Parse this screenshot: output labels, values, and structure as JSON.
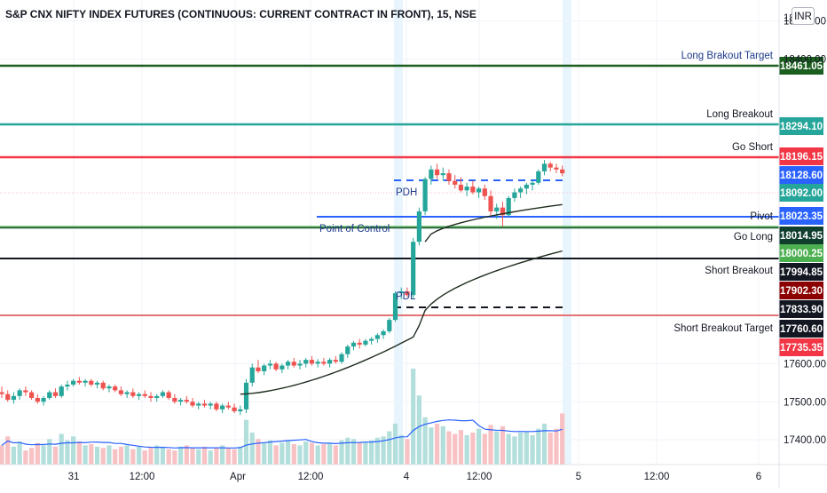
{
  "header": {
    "title": "S&P CNX NIFTY INDEX FUTURES (CONTINUOUS: CURRENT CONTRACT IN FRONT), 15, NSE",
    "currency": "INR"
  },
  "colors": {
    "candle_up": "#26a69a",
    "candle_down": "#ef5350",
    "vol_up": "#b2dfdb",
    "vol_down": "#f8c1c3",
    "vwap": "#1f2d1f",
    "volume_ma": "#2962ff",
    "session_band": "#e3f2fd"
  },
  "price_axis": {
    "ticks": [
      "18500.00",
      "18400.00",
      "17600.00",
      "17500.00",
      "17400.00"
    ],
    "top_label": "18"
  },
  "time_axis": {
    "ticks": [
      "31",
      "12:00",
      "Apr",
      "12:00",
      "4",
      "12:00",
      "5",
      "12:00",
      "6"
    ]
  },
  "levels": [
    {
      "label": "Long Brakout Target",
      "value": "18461.05",
      "style": "darkgreen"
    },
    {
      "label": "Long Breakout",
      "value": "18294.10",
      "style": "teal"
    },
    {
      "label": "Go Short",
      "value": "18196.15",
      "style": "red"
    },
    {
      "label": "PDH",
      "value": "18128.60",
      "style": "bluedash"
    },
    {
      "label": "",
      "value": "18092.00",
      "style": "current"
    },
    {
      "label": "Pivot",
      "value": "18023.35",
      "style": "blue"
    },
    {
      "label": "Go Long",
      "value": "18014.95",
      "style": "darkteal"
    },
    {
      "label": "",
      "value": "18000.25",
      "style": "green"
    },
    {
      "label": "Short Breakout",
      "value": "17994.85",
      "style": "black"
    },
    {
      "label": "",
      "value": "17902.30",
      "style": "maroon"
    },
    {
      "label": "PDL",
      "value": "17833.90",
      "style": "blackdash"
    },
    {
      "label": "Short Breakout Target",
      "value": "17760.60",
      "style": "darkred"
    },
    {
      "label": "",
      "value": "17735.35",
      "style": "redbadge"
    }
  ],
  "annotations": {
    "point_of_control": "Point of Control"
  },
  "chart_data": {
    "type": "candlestick",
    "title": "S&P CNX NIFTY INDEX FUTURES (CONTINUOUS: CURRENT CONTRACT IN FRONT), 15, NSE",
    "interval": "15",
    "exchange": "NSE",
    "candles": [
      [
        17525,
        17540,
        17510,
        17520
      ],
      [
        17520,
        17530,
        17500,
        17505
      ],
      [
        17505,
        17525,
        17495,
        17515
      ],
      [
        17515,
        17535,
        17505,
        17530
      ],
      [
        17530,
        17540,
        17515,
        17525
      ],
      [
        17525,
        17530,
        17505,
        17510
      ],
      [
        17510,
        17520,
        17495,
        17500
      ],
      [
        17500,
        17515,
        17490,
        17510
      ],
      [
        17510,
        17530,
        17505,
        17525
      ],
      [
        17525,
        17535,
        17510,
        17515
      ],
      [
        17515,
        17545,
        17510,
        17540
      ],
      [
        17540,
        17555,
        17530,
        17545
      ],
      [
        17545,
        17560,
        17540,
        17555
      ],
      [
        17555,
        17565,
        17545,
        17550
      ],
      [
        17550,
        17560,
        17540,
        17555
      ],
      [
        17555,
        17560,
        17540,
        17545
      ],
      [
        17545,
        17555,
        17535,
        17550
      ],
      [
        17550,
        17555,
        17530,
        17535
      ],
      [
        17535,
        17545,
        17525,
        17540
      ],
      [
        17540,
        17545,
        17525,
        17530
      ],
      [
        17530,
        17540,
        17515,
        17520
      ],
      [
        17520,
        17530,
        17510,
        17525
      ],
      [
        17525,
        17535,
        17510,
        17515
      ],
      [
        17515,
        17525,
        17505,
        17520
      ],
      [
        17520,
        17530,
        17510,
        17515
      ],
      [
        17515,
        17525,
        17500,
        17510
      ],
      [
        17510,
        17520,
        17500,
        17515
      ],
      [
        17515,
        17530,
        17510,
        17525
      ],
      [
        17525,
        17530,
        17505,
        17510
      ],
      [
        17510,
        17520,
        17495,
        17500
      ],
      [
        17500,
        17510,
        17490,
        17505
      ],
      [
        17505,
        17515,
        17495,
        17500
      ],
      [
        17500,
        17510,
        17485,
        17490
      ],
      [
        17490,
        17500,
        17480,
        17495
      ],
      [
        17495,
        17505,
        17485,
        17490
      ],
      [
        17490,
        17500,
        17480,
        17495
      ],
      [
        17495,
        17500,
        17475,
        17480
      ],
      [
        17480,
        17495,
        17470,
        17490
      ],
      [
        17490,
        17500,
        17480,
        17485
      ],
      [
        17485,
        17495,
        17470,
        17475
      ],
      [
        17475,
        17490,
        17465,
        17480
      ],
      [
        17480,
        17560,
        17470,
        17550
      ],
      [
        17550,
        17600,
        17540,
        17590
      ],
      [
        17590,
        17610,
        17575,
        17580
      ],
      [
        17580,
        17600,
        17570,
        17595
      ],
      [
        17595,
        17610,
        17585,
        17600
      ],
      [
        17600,
        17605,
        17580,
        17585
      ],
      [
        17585,
        17600,
        17575,
        17595
      ],
      [
        17595,
        17610,
        17585,
        17605
      ],
      [
        17605,
        17615,
        17590,
        17595
      ],
      [
        17595,
        17610,
        17585,
        17600
      ],
      [
        17600,
        17615,
        17590,
        17610
      ],
      [
        17610,
        17620,
        17595,
        17600
      ],
      [
        17600,
        17612,
        17590,
        17605
      ],
      [
        17605,
        17615,
        17595,
        17600
      ],
      [
        17600,
        17615,
        17590,
        17610
      ],
      [
        17610,
        17620,
        17600,
        17605
      ],
      [
        17605,
        17630,
        17600,
        17625
      ],
      [
        17625,
        17650,
        17615,
        17645
      ],
      [
        17645,
        17660,
        17635,
        17655
      ],
      [
        17655,
        17665,
        17640,
        17650
      ],
      [
        17650,
        17665,
        17645,
        17660
      ],
      [
        17660,
        17670,
        17650,
        17665
      ],
      [
        17665,
        17680,
        17655,
        17675
      ],
      [
        17675,
        17690,
        17665,
        17685
      ],
      [
        17685,
        17720,
        17680,
        17715
      ],
      [
        17715,
        17790,
        17710,
        17785
      ],
      [
        17785,
        17800,
        17770,
        17790
      ],
      [
        17790,
        17800,
        17775,
        17780
      ],
      [
        17780,
        17930,
        17770,
        17920
      ],
      [
        17920,
        18010,
        17910,
        18000
      ],
      [
        18000,
        18090,
        17990,
        18085
      ],
      [
        18085,
        18120,
        18070,
        18110
      ],
      [
        18110,
        18125,
        18085,
        18095
      ],
      [
        18095,
        18115,
        18080,
        18100
      ],
      [
        18100,
        18110,
        18070,
        18080
      ],
      [
        18080,
        18095,
        18060,
        18070
      ],
      [
        18070,
        18090,
        18050,
        18055
      ],
      [
        18055,
        18075,
        18040,
        18065
      ],
      [
        18065,
        18080,
        18045,
        18050
      ],
      [
        18050,
        18065,
        18035,
        18060
      ],
      [
        18060,
        18070,
        18030,
        18040
      ],
      [
        18040,
        18055,
        17990,
        18000
      ],
      [
        18000,
        18020,
        17980,
        18010
      ],
      [
        18010,
        18025,
        17960,
        17990
      ],
      [
        17990,
        18040,
        17985,
        18035
      ],
      [
        18035,
        18060,
        18025,
        18050
      ],
      [
        18050,
        18065,
        18035,
        18060
      ],
      [
        18060,
        18075,
        18045,
        18070
      ],
      [
        18070,
        18085,
        18055,
        18075
      ],
      [
        18075,
        18110,
        18070,
        18105
      ],
      [
        18105,
        18135,
        18095,
        18125
      ],
      [
        18125,
        18130,
        18105,
        18115
      ],
      [
        18115,
        18125,
        18100,
        18110
      ],
      [
        18110,
        18120,
        18092,
        18100
      ]
    ],
    "volume": [
      30,
      44,
      28,
      36,
      22,
      26,
      34,
      30,
      40,
      28,
      48,
      38,
      44,
      36,
      30,
      32,
      28,
      26,
      30,
      24,
      28,
      30,
      24,
      28,
      22,
      26,
      30,
      28,
      24,
      22,
      28,
      30,
      26,
      24,
      28,
      22,
      26,
      30,
      26,
      24,
      28,
      70,
      50,
      40,
      34,
      38,
      30,
      34,
      38,
      32,
      30,
      36,
      34,
      30,
      32,
      34,
      30,
      38,
      42,
      40,
      34,
      36,
      38,
      42,
      44,
      52,
      64,
      46,
      40,
      150,
      108,
      74,
      58,
      64,
      60,
      52,
      48,
      54,
      46,
      50,
      56,
      48,
      62,
      52,
      60,
      48,
      44,
      50,
      52,
      46,
      56,
      64,
      50,
      56,
      80
    ],
    "price_range": [
      17335,
      18555
    ]
  }
}
